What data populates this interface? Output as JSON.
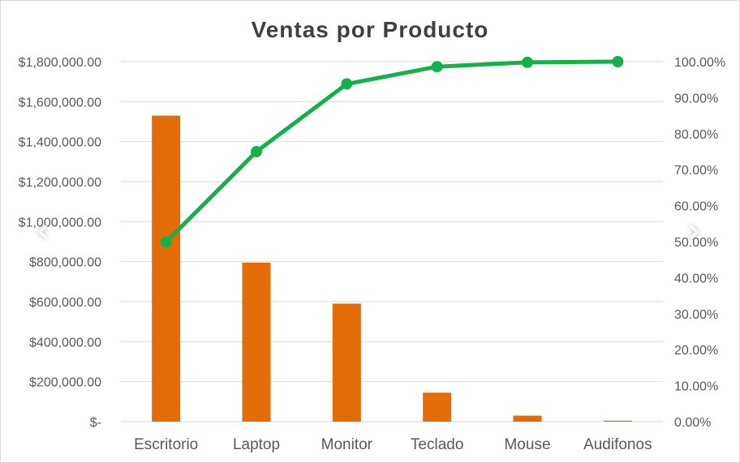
{
  "chart_data": {
    "type": "bar",
    "title": "Ventas por Producto",
    "categories": [
      "Escritorio",
      "Laptop",
      "Monitor",
      "Teclado",
      "Mouse",
      "Audifonos"
    ],
    "series": [
      {
        "chart_type": "bar",
        "axis": "primary",
        "color": "#E36C09",
        "values": [
          1530000,
          795000,
          590000,
          145000,
          30000,
          5000
        ]
      },
      {
        "chart_type": "line",
        "axis": "secondary",
        "color": "#12B14A",
        "values": [
          49.9,
          75.0,
          93.8,
          98.6,
          99.8,
          100.0
        ]
      }
    ],
    "ylim": [
      0,
      1800000
    ],
    "y2lim": [
      0,
      100
    ],
    "yticks": [
      "$1,800,000.00",
      "$1,600,000.00",
      "$1,400,000.00",
      "$1,200,000.00",
      "$1,000,000.00",
      "$800,000.00",
      "$600,000.00",
      "$400,000.00",
      "$200,000.00",
      "$-"
    ],
    "y2ticks": [
      "100.00%",
      "90.00%",
      "80.00%",
      "70.00%",
      "60.00%",
      "50.00%",
      "40.00%",
      "30.00%",
      "20.00%",
      "10.00%",
      "0.00%"
    ],
    "grid": true,
    "gridline_color": "#d9d9d9",
    "legend": "none"
  },
  "nav": {
    "prev_icon": "chevron-left-icon",
    "next_icon": "chevron-right-icon",
    "prev_glyph": "‹",
    "next_glyph": "›"
  }
}
